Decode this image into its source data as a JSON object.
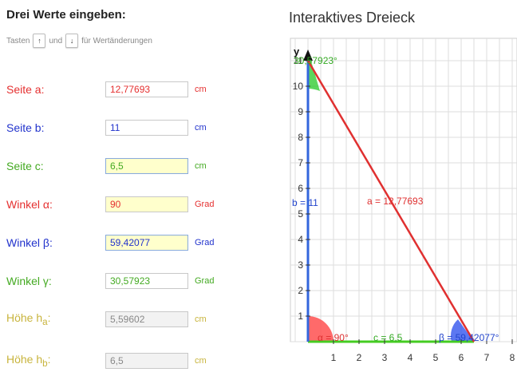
{
  "form": {
    "heading": "Drei Werte eingeben:",
    "hint": {
      "prefix": "Tasten",
      "up_key": "↑",
      "middle": "und",
      "down_key": "↓",
      "suffix": "für Wertänderungen"
    },
    "rows": [
      {
        "label": "Seite a:",
        "value": "12,77693",
        "unit": "cm"
      },
      {
        "label": "Seite b:",
        "value": "11",
        "unit": "cm"
      },
      {
        "label": "Seite c:",
        "value": "6,5",
        "unit": "cm"
      },
      {
        "label": "Winkel α:",
        "value": "90",
        "unit": "Grad"
      },
      {
        "label": "Winkel β:",
        "value": "59,42077",
        "unit": "Grad"
      },
      {
        "label": "Winkel γ:",
        "value": "30,57923",
        "unit": "Grad"
      },
      {
        "label_main": "Höhe h",
        "label_sub": "a",
        "label_end": ":",
        "value": "5,59602",
        "unit": "cm"
      },
      {
        "label_main": "Höhe h",
        "label_sub": "b",
        "label_end": ":",
        "value": "6,5",
        "unit": "cm"
      }
    ]
  },
  "diagram": {
    "title": "Interaktives Dreieck",
    "axis_y_label": "y",
    "x_ticks": [
      "1",
      "2",
      "3",
      "4",
      "5",
      "6",
      "7",
      "8"
    ],
    "y_ticks": [
      "1",
      "2",
      "3",
      "4",
      "5",
      "6",
      "7",
      "8",
      "9",
      "10",
      "11"
    ],
    "side_a_label": "a = 12,77693",
    "side_b_label": "b = 11",
    "side_c_label": "c = 6,5",
    "angle_alpha_label": "α = 90°",
    "angle_beta_label": "β = 59,42077°",
    "angle_gamma_label": "30,57923°",
    "colors": {
      "side_a": "#e03030",
      "side_b": "#3366dd",
      "side_c": "#44cc22",
      "grid": "#dddddd"
    }
  }
}
